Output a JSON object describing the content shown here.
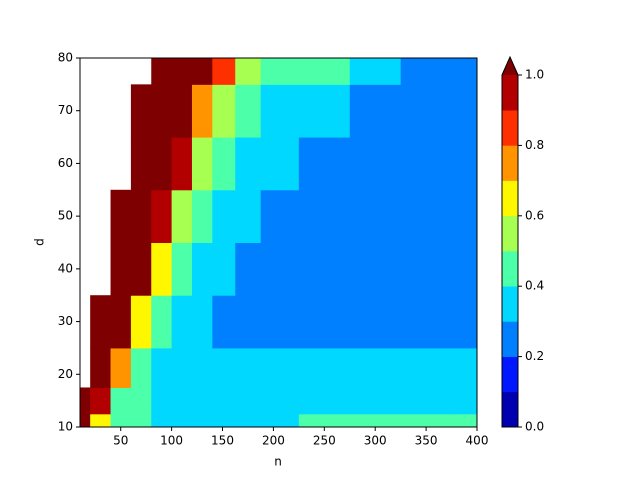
{
  "chart_data": {
    "type": "contourf",
    "xlabel": "n",
    "ylabel": "d",
    "x": [
      10,
      30,
      50,
      70,
      90,
      110,
      130,
      150,
      175,
      200,
      250,
      300,
      350,
      400
    ],
    "y": [
      10,
      15,
      20,
      30,
      40,
      50,
      60,
      70,
      80
    ],
    "z": [
      [
        1.05,
        0.6,
        0.42,
        0.45,
        0.38,
        0.35,
        0.38,
        0.35,
        0.35,
        0.38,
        0.42,
        0.42,
        0.42,
        0.45
      ],
      [
        1.05,
        0.9,
        0.45,
        0.42,
        0.38,
        0.35,
        0.35,
        0.35,
        0.35,
        0.35,
        0.35,
        0.35,
        0.35,
        0.38
      ],
      [
        null,
        1.05,
        0.7,
        0.45,
        0.38,
        0.35,
        0.32,
        0.3,
        0.32,
        0.35,
        0.32,
        0.32,
        0.32,
        0.35
      ],
      [
        null,
        1.05,
        1.05,
        0.65,
        0.45,
        0.38,
        0.32,
        0.25,
        0.25,
        0.25,
        0.25,
        0.25,
        0.25,
        0.25
      ],
      [
        null,
        null,
        1.05,
        1.05,
        0.6,
        0.45,
        0.38,
        0.32,
        0.25,
        0.25,
        0.25,
        0.25,
        0.25,
        0.25
      ],
      [
        null,
        null,
        1.05,
        1.05,
        0.95,
        0.55,
        0.45,
        0.38,
        0.32,
        0.25,
        0.25,
        0.25,
        0.25,
        0.25
      ],
      [
        null,
        null,
        null,
        1.05,
        1.05,
        0.9,
        0.5,
        0.45,
        0.38,
        0.32,
        0.25,
        0.25,
        0.25,
        0.25
      ],
      [
        null,
        null,
        null,
        1.05,
        1.05,
        1.05,
        0.75,
        0.5,
        0.45,
        0.38,
        0.32,
        0.25,
        0.25,
        0.25
      ],
      [
        null,
        null,
        null,
        null,
        1.05,
        1.05,
        1.05,
        0.85,
        0.55,
        0.45,
        0.42,
        0.35,
        0.25,
        0.25
      ]
    ],
    "levels": [
      0,
      0.1,
      0.2,
      0.3,
      0.4,
      0.5,
      0.6,
      0.7,
      0.8,
      0.9,
      1.0
    ],
    "colors": [
      "#0000b0",
      "#0018ff",
      "#0080ff",
      "#00d8ff",
      "#4cffa9",
      "#a6ff51",
      "#fff700",
      "#ff9400",
      "#ff3000",
      "#b20000"
    ],
    "extend_color": "#7f0000",
    "xlim": [
      10,
      400
    ],
    "ylim": [
      10,
      80
    ],
    "xticks": [
      50,
      100,
      150,
      200,
      250,
      300,
      350,
      400
    ],
    "yticks": [
      10,
      20,
      30,
      40,
      50,
      60,
      70,
      80
    ],
    "cticks": [
      {
        "value": 0,
        "label": "0.0"
      },
      {
        "value": 0.2,
        "label": "0.2"
      },
      {
        "value": 0.4,
        "label": "0.4"
      },
      {
        "value": 0.6,
        "label": "0.6"
      },
      {
        "value": 0.8,
        "label": "0.8"
      },
      {
        "value": 1.0,
        "label": "1.0"
      }
    ]
  }
}
